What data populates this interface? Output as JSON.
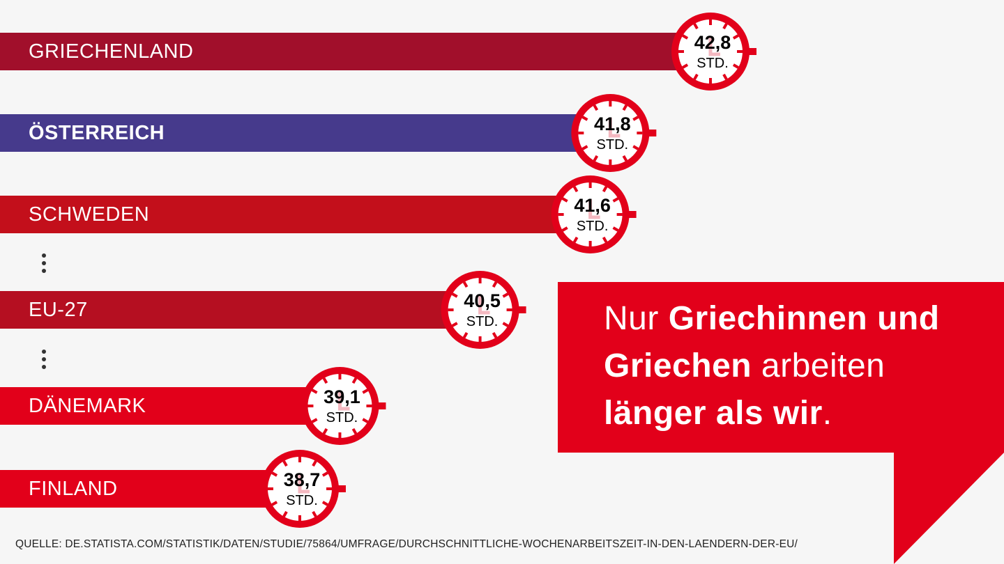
{
  "chart_data": {
    "type": "bar",
    "orientation": "horizontal",
    "categories": [
      "GRIECHENLAND",
      "ÖSTERREICH",
      "SCHWEDEN",
      "EU-27",
      "DÄNEMARK",
      "FINLAND"
    ],
    "values": [
      42.8,
      41.8,
      41.6,
      40.5,
      39.1,
      38.7
    ],
    "value_labels": [
      "42,8",
      "41,8",
      "41,6",
      "40,5",
      "39,1",
      "38,7"
    ],
    "unit_label": "STD.",
    "colors": [
      "#a10f2b",
      "#463a8c",
      "#c30f1b",
      "#b50f21",
      "#e2001a",
      "#e2001a"
    ],
    "highlight": "ÖSTERREICH"
  },
  "callout": {
    "line1_plain": "Nur ",
    "line1_bold": "Griechinnen und",
    "line2_bold": "Griechen",
    "line2_plain": " arbeiten",
    "line3_bold": "länger als wir",
    "line3_plain": ".",
    "color": "#e2001a"
  },
  "source": "QUELLE: DE.STATISTA.COM/STATISTIK/DATEN/STUDIE/75864/UMFRAGE/DURCHSCHNITTLICHE-WOCHENARBEITSZEIT-IN-DEN-LAENDERN-DER-EU/"
}
